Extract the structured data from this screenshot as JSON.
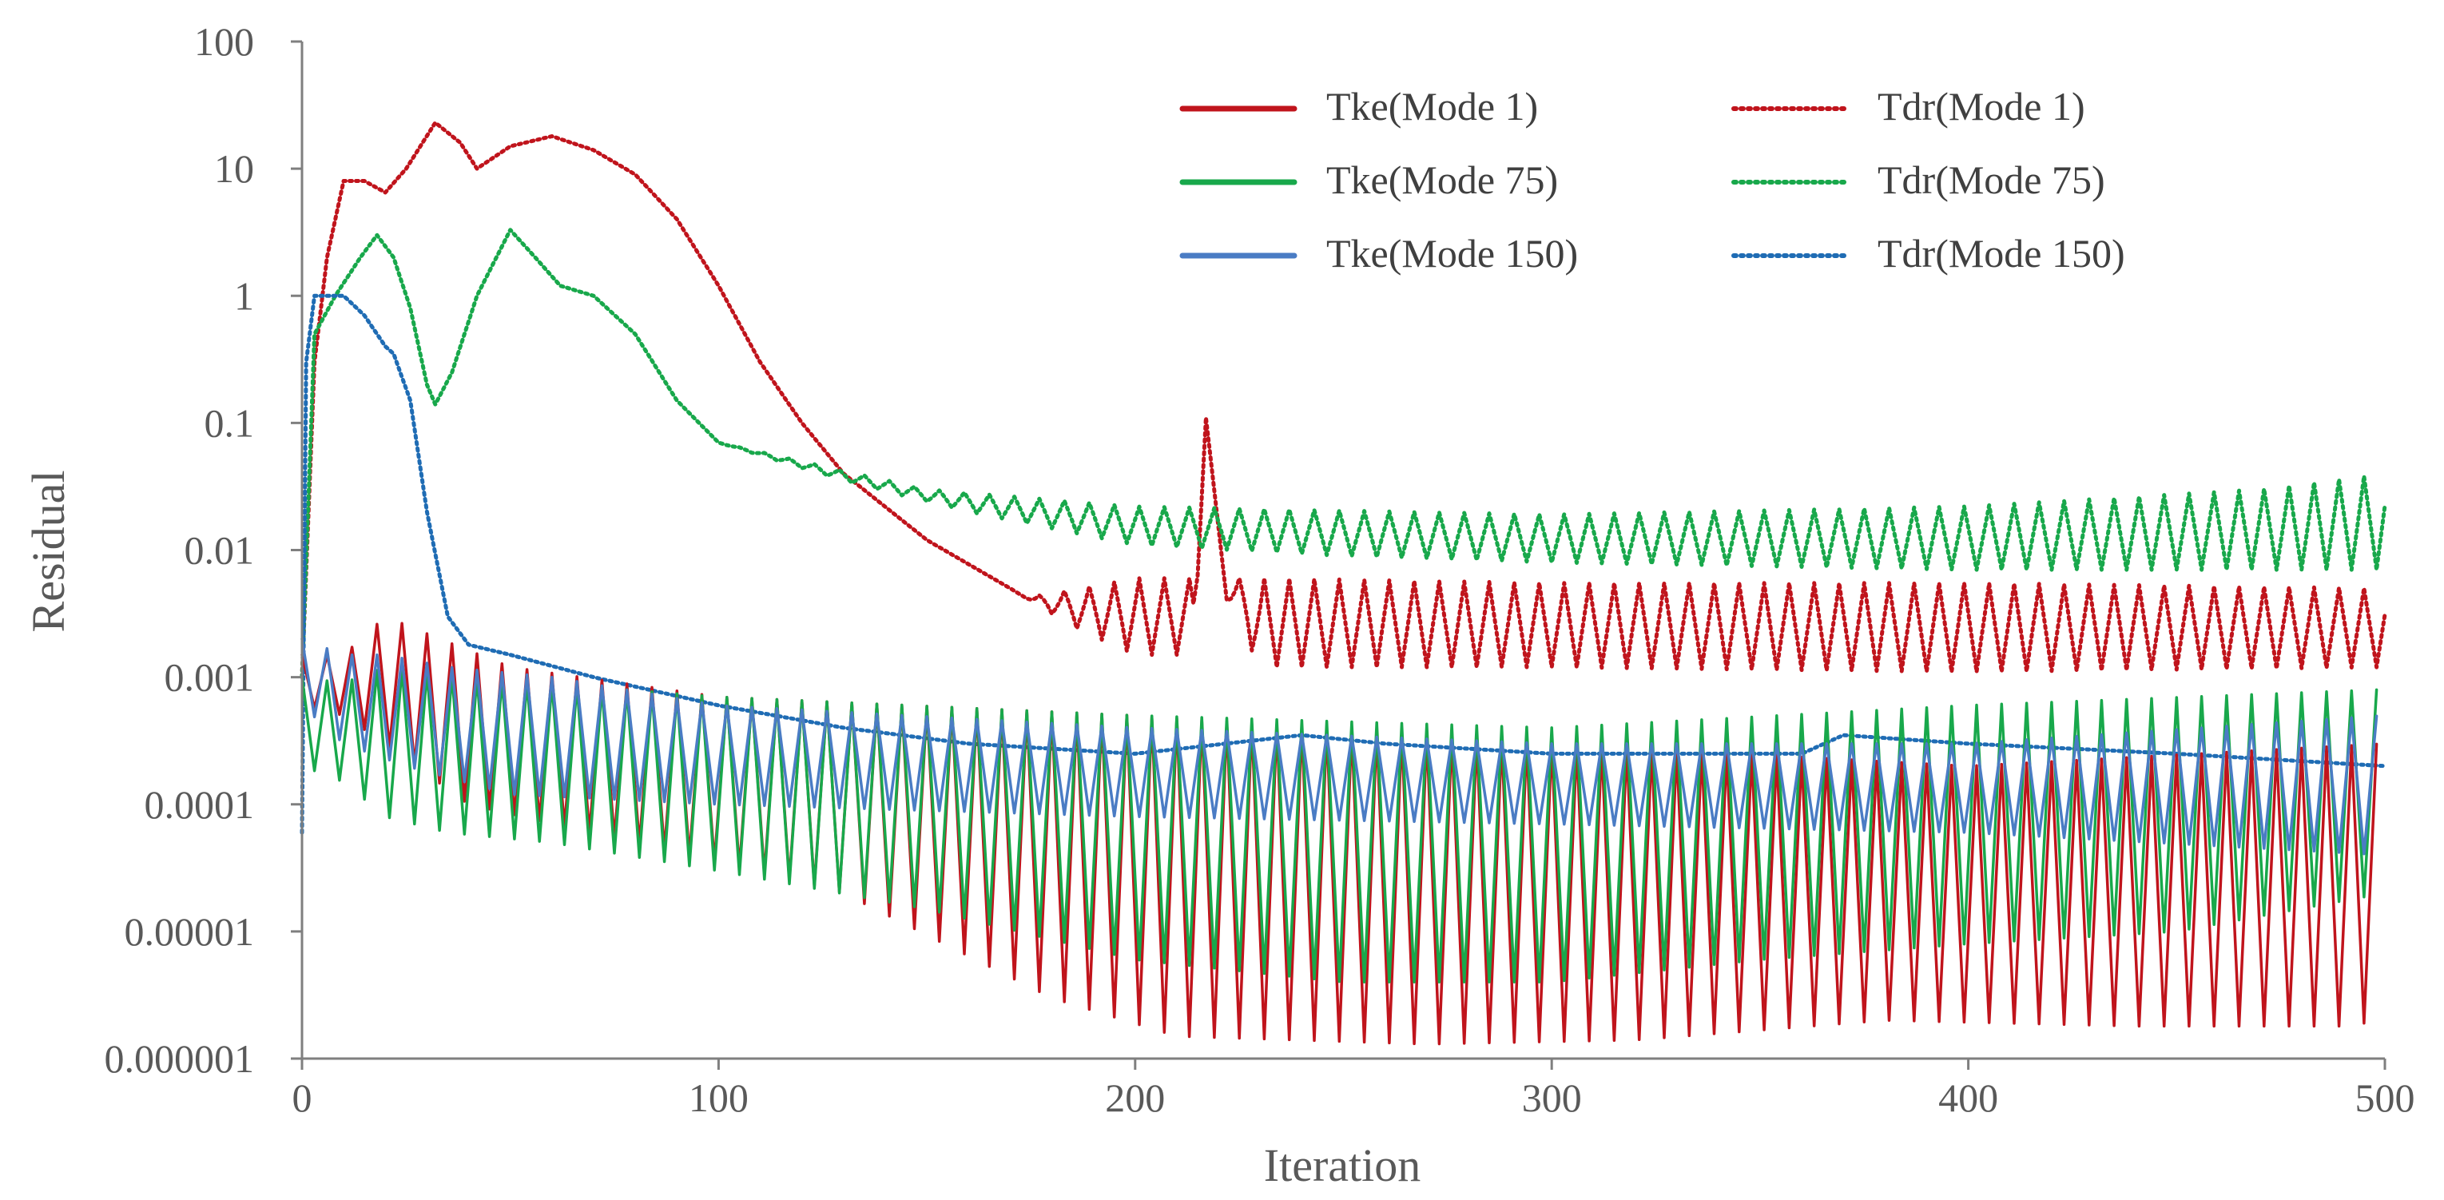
{
  "chart_data": {
    "type": "line",
    "title": "",
    "xlabel": "Iteration",
    "ylabel": "Residual",
    "xlim": [
      0,
      500
    ],
    "ylim": [
      1e-06,
      100
    ],
    "yscale": "log",
    "x_ticks": [
      "0",
      "100",
      "200",
      "300",
      "400",
      "500"
    ],
    "x_tick_values": [
      0,
      100,
      200,
      300,
      400,
      500
    ],
    "y_ticks": [
      "0.000001",
      "0.00001",
      "0.0001",
      "0.001",
      "0.01",
      "0.1",
      "1",
      "10",
      "100"
    ],
    "y_tick_values": [
      1e-06,
      1e-05,
      0.0001,
      0.001,
      0.01,
      0.1,
      1,
      10,
      100
    ],
    "grid": false,
    "legend_position": "top-right",
    "oscillation_period": 6,
    "series": [
      {
        "name": "Tke(Mode 1)",
        "color": "#c0141c",
        "style": "solid",
        "upper": [
          [
            0,
            0.0015
          ],
          [
            10,
            0.0015
          ],
          [
            20,
            0.003
          ],
          [
            30,
            0.0022
          ],
          [
            50,
            0.0012
          ],
          [
            100,
            0.0007
          ],
          [
            200,
            0.0005
          ],
          [
            300,
            0.0003
          ],
          [
            400,
            0.0002
          ],
          [
            500,
            0.0003
          ]
        ],
        "lower": [
          [
            0,
            0.0006
          ],
          [
            10,
            0.0005
          ],
          [
            20,
            0.0003
          ],
          [
            40,
            0.0001
          ],
          [
            80,
            5e-05
          ],
          [
            130,
            2e-05
          ],
          [
            180,
            3e-06
          ],
          [
            210,
            1.5e-06
          ],
          [
            270,
            1.3e-06
          ],
          [
            320,
            1.4e-06
          ],
          [
            380,
            2e-06
          ],
          [
            440,
            1.8e-06
          ],
          [
            490,
            1.8e-06
          ],
          [
            500,
            2e-06
          ]
        ]
      },
      {
        "name": "Tdr(Mode 1)",
        "color": "#c0141c",
        "style": "dotted",
        "values": [
          [
            0,
            0.001
          ],
          [
            3,
            0.3
          ],
          [
            6,
            2
          ],
          [
            10,
            8
          ],
          [
            15,
            8
          ],
          [
            20,
            6.5
          ],
          [
            25,
            10
          ],
          [
            32,
            23
          ],
          [
            38,
            16
          ],
          [
            42,
            10
          ],
          [
            50,
            15
          ],
          [
            60,
            18
          ],
          [
            70,
            14
          ],
          [
            80,
            9
          ],
          [
            90,
            4
          ],
          [
            100,
            1.2
          ],
          [
            110,
            0.3
          ],
          [
            120,
            0.1
          ],
          [
            130,
            0.04
          ],
          [
            150,
            0.012
          ],
          [
            170,
            0.005
          ],
          [
            185,
            0.0025
          ],
          [
            200,
            0.0015
          ],
          [
            214,
            0.0015
          ],
          [
            217,
            0.11
          ],
          [
            222,
            0.004
          ],
          [
            230,
            0.0012
          ],
          [
            300,
            0.0012
          ],
          [
            400,
            0.0011
          ],
          [
            500,
            0.0012
          ]
        ],
        "osc_high": [
          [
            170,
            0.004
          ],
          [
            200,
            0.006
          ],
          [
            230,
            0.006
          ],
          [
            300,
            0.0055
          ],
          [
            400,
            0.0055
          ],
          [
            500,
            0.005
          ]
        ]
      },
      {
        "name": "Tke(Mode 75)",
        "color": "#18a84b",
        "style": "solid",
        "upper": [
          [
            0,
            0.001
          ],
          [
            10,
            0.0009
          ],
          [
            20,
            0.0012
          ],
          [
            40,
            0.001
          ],
          [
            100,
            0.0007
          ],
          [
            200,
            0.0005
          ],
          [
            300,
            0.0004
          ],
          [
            400,
            0.0006
          ],
          [
            500,
            0.0008
          ]
        ],
        "lower": [
          [
            0,
            0.0002
          ],
          [
            10,
            0.00015
          ],
          [
            20,
            8e-05
          ],
          [
            35,
            6e-05
          ],
          [
            60,
            5e-05
          ],
          [
            100,
            3e-05
          ],
          [
            150,
            1.5e-05
          ],
          [
            200,
            6e-06
          ],
          [
            250,
            4e-06
          ],
          [
            300,
            4e-06
          ],
          [
            350,
            6e-06
          ],
          [
            400,
            8e-06
          ],
          [
            450,
            1e-05
          ],
          [
            500,
            2e-05
          ]
        ]
      },
      {
        "name": "Tdr(Mode 75)",
        "color": "#18a84b",
        "style": "dotted",
        "values": [
          [
            0,
            0.001
          ],
          [
            3,
            0.5
          ],
          [
            8,
            1
          ],
          [
            14,
            2
          ],
          [
            18,
            3
          ],
          [
            22,
            2
          ],
          [
            26,
            0.8
          ],
          [
            30,
            0.2
          ],
          [
            32,
            0.14
          ],
          [
            36,
            0.25
          ],
          [
            42,
            1
          ],
          [
            50,
            3.3
          ],
          [
            56,
            2
          ],
          [
            62,
            1.2
          ],
          [
            70,
            1
          ],
          [
            80,
            0.5
          ],
          [
            90,
            0.15
          ],
          [
            100,
            0.07
          ],
          [
            130,
            0.035
          ],
          [
            160,
            0.02
          ],
          [
            200,
            0.011
          ],
          [
            250,
            0.009
          ],
          [
            300,
            0.008
          ],
          [
            400,
            0.007
          ],
          [
            500,
            0.007
          ]
        ],
        "osc_high": [
          [
            100,
            0.07
          ],
          [
            150,
            0.03
          ],
          [
            200,
            0.022
          ],
          [
            300,
            0.019
          ],
          [
            400,
            0.022
          ],
          [
            470,
            0.03
          ],
          [
            500,
            0.04
          ]
        ]
      },
      {
        "name": "Tke(Mode 150)",
        "color": "#4a7cc4",
        "style": "solid",
        "upper": [
          [
            0,
            0.002
          ],
          [
            10,
            0.0015
          ],
          [
            20,
            0.0015
          ],
          [
            35,
            0.0012
          ],
          [
            60,
            0.001
          ],
          [
            100,
            0.0006
          ],
          [
            200,
            0.0004
          ],
          [
            300,
            0.0003
          ],
          [
            400,
            0.0003
          ],
          [
            500,
            0.0005
          ]
        ],
        "lower": [
          [
            0,
            0.0006
          ],
          [
            10,
            0.0003
          ],
          [
            25,
            0.0002
          ],
          [
            50,
            0.00012
          ],
          [
            100,
            0.0001
          ],
          [
            200,
            8e-05
          ],
          [
            300,
            7e-05
          ],
          [
            400,
            6e-05
          ],
          [
            500,
            4e-05
          ]
        ]
      },
      {
        "name": "Tdr(Mode 150)",
        "color": "#1f6cb4",
        "style": "dotted",
        "values": [
          [
            0,
            6e-05
          ],
          [
            1,
            0.3
          ],
          [
            3,
            1
          ],
          [
            10,
            1
          ],
          [
            15,
            0.7
          ],
          [
            20,
            0.4
          ],
          [
            22,
            0.35
          ],
          [
            26,
            0.15
          ],
          [
            30,
            0.02
          ],
          [
            35,
            0.003
          ],
          [
            40,
            0.0018
          ],
          [
            50,
            0.0015
          ],
          [
            70,
            0.001
          ],
          [
            100,
            0.0006
          ],
          [
            130,
            0.0004
          ],
          [
            160,
            0.0003
          ],
          [
            200,
            0.00025
          ],
          [
            240,
            0.00035
          ],
          [
            260,
            0.0003
          ],
          [
            300,
            0.00025
          ],
          [
            360,
            0.00025
          ],
          [
            370,
            0.00035
          ],
          [
            400,
            0.0003
          ],
          [
            450,
            0.00025
          ],
          [
            500,
            0.0002
          ]
        ]
      }
    ]
  }
}
